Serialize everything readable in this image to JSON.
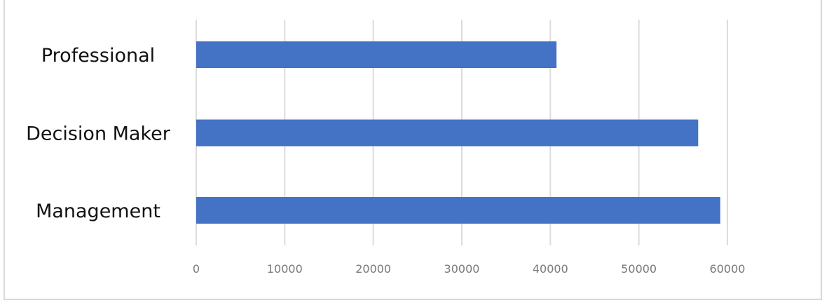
{
  "chart_data": {
    "type": "bar",
    "orientation": "horizontal",
    "categories": [
      "Professional",
      "Decision Maker",
      "Management"
    ],
    "values": [
      40700,
      56700,
      59200
    ],
    "title": "",
    "xlabel": "",
    "ylabel": "",
    "xlim": [
      0,
      60000
    ],
    "xticks": [
      "0",
      "10000",
      "20000",
      "30000",
      "40000",
      "50000",
      "60000"
    ],
    "grid": "vertical",
    "legend": "none",
    "bar_color": "#4472C4"
  }
}
